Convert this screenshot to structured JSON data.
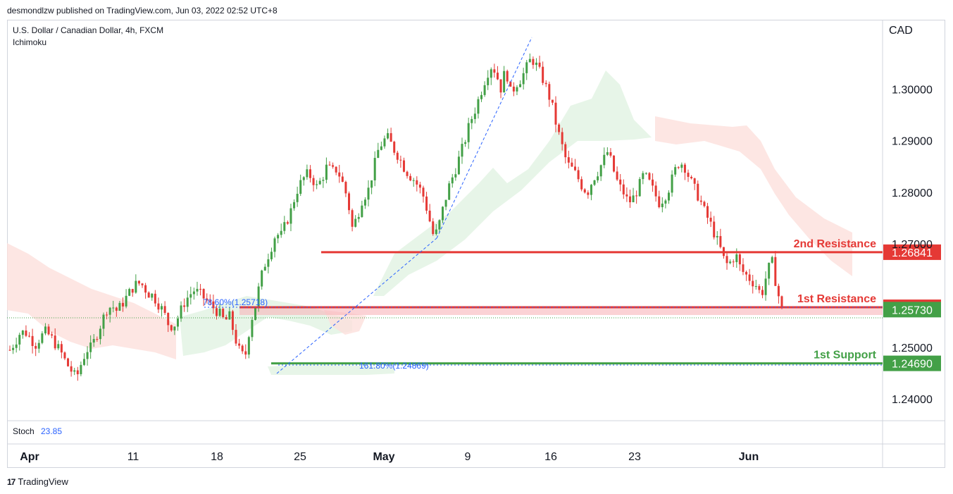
{
  "header": {
    "text": "desmondlzw published on TradingView.com, Jun 03, 2022 02:52 UTC+8"
  },
  "legend": {
    "symbol": "U.S. Dollar / Canadian Dollar, 4h, FXCM",
    "indicator": "Ichimoku"
  },
  "currency": "CAD",
  "stoch": {
    "label": "Stoch",
    "value": "23.85"
  },
  "footer": {
    "brand": "TradingView",
    "logo": "17"
  },
  "colors": {
    "up": "#43a047",
    "down": "#e53935",
    "resistance": "#e53935",
    "support": "#43a047",
    "fib": "#2962ff"
  },
  "chart_data": {
    "type": "candlestick",
    "y_ticks": [
      "1.30000",
      "1.29000",
      "1.28000",
      "1.27000",
      "1.25000",
      "1.24000"
    ],
    "y_tick_values": [
      1.3,
      1.29,
      1.28,
      1.27,
      1.25,
      1.24
    ],
    "ylim": [
      1.2358,
      1.3134
    ],
    "x_ticks": [
      {
        "label": "Apr",
        "bold": true
      },
      {
        "label": "11",
        "bold": false
      },
      {
        "label": "18",
        "bold": false
      },
      {
        "label": "25",
        "bold": false
      },
      {
        "label": "May",
        "bold": true
      },
      {
        "label": "9",
        "bold": false
      },
      {
        "label": "16",
        "bold": false
      },
      {
        "label": "23",
        "bold": false
      },
      {
        "label": "Jun",
        "bold": true
      }
    ],
    "levels": [
      {
        "name": "2nd Resistance",
        "price_label": "1.26841",
        "value": 1.26841,
        "kind": "resistance"
      },
      {
        "name": "1st Resistance",
        "price_label": "1.25775",
        "value": 1.25775,
        "kind": "resistance"
      },
      {
        "name": "",
        "price_label": "1.25730",
        "value": 1.2573,
        "kind": "current"
      },
      {
        "name": "1st Support",
        "price_label": "1.24690",
        "value": 1.2469,
        "kind": "support"
      }
    ],
    "fib_labels": [
      {
        "text": "78.60%(1.25718)",
        "value": 1.25718
      },
      {
        "text": "161.80%(1.24869)",
        "value": 1.24869
      }
    ],
    "path_close": [
      1.2495,
      1.251,
      1.2528,
      1.253,
      1.2518,
      1.2505,
      1.252,
      1.253,
      1.252,
      1.2505,
      1.249,
      1.247,
      1.2455,
      1.244,
      1.247,
      1.2495,
      1.25,
      1.2525,
      1.255,
      1.2575,
      1.258,
      1.257,
      1.2585,
      1.26,
      1.2615,
      1.2625,
      1.262,
      1.2605,
      1.26,
      1.2585,
      1.257,
      1.2545,
      1.254,
      1.256,
      1.2585,
      1.26,
      1.261,
      1.2605,
      1.2595,
      1.2585,
      1.2575,
      1.2565,
      1.255,
      1.256,
      1.252,
      1.249,
      1.248,
      1.2545,
      1.258,
      1.263,
      1.2665,
      1.269,
      1.272,
      1.2715,
      1.274,
      1.2765,
      1.28,
      1.282,
      1.2835,
      1.283,
      1.281,
      1.2825,
      1.285,
      1.284,
      1.2845,
      1.282,
      1.279,
      1.273,
      1.2755,
      1.279,
      1.28,
      1.284,
      1.288,
      1.29,
      1.2905,
      1.2885,
      1.287,
      1.285,
      1.2835,
      1.2825,
      1.281,
      1.279,
      1.275,
      1.271,
      1.274,
      1.278,
      1.2815,
      1.284,
      1.287,
      1.29,
      1.2935,
      1.296,
      1.299,
      1.302,
      1.3045,
      1.3035,
      1.3,
      1.304,
      1.299,
      1.301,
      1.302,
      1.304,
      1.306,
      1.3045,
      1.3025,
      1.3,
      1.297,
      1.2925,
      1.289,
      1.2855,
      1.2845,
      1.283,
      1.281,
      1.28,
      1.2825,
      1.284,
      1.286,
      1.288,
      1.2845,
      1.2815,
      1.28,
      1.278,
      1.279,
      1.281,
      1.2835,
      1.282,
      1.28,
      1.278,
      1.279,
      1.281,
      1.284,
      1.286,
      1.285,
      1.2825,
      1.2805,
      1.2785,
      1.276,
      1.274,
      1.2715,
      1.269,
      1.266,
      1.2665,
      1.268,
      1.265,
      1.264,
      1.263,
      1.262,
      1.26,
      1.264,
      1.267,
      1.2615,
      1.2573
    ]
  }
}
